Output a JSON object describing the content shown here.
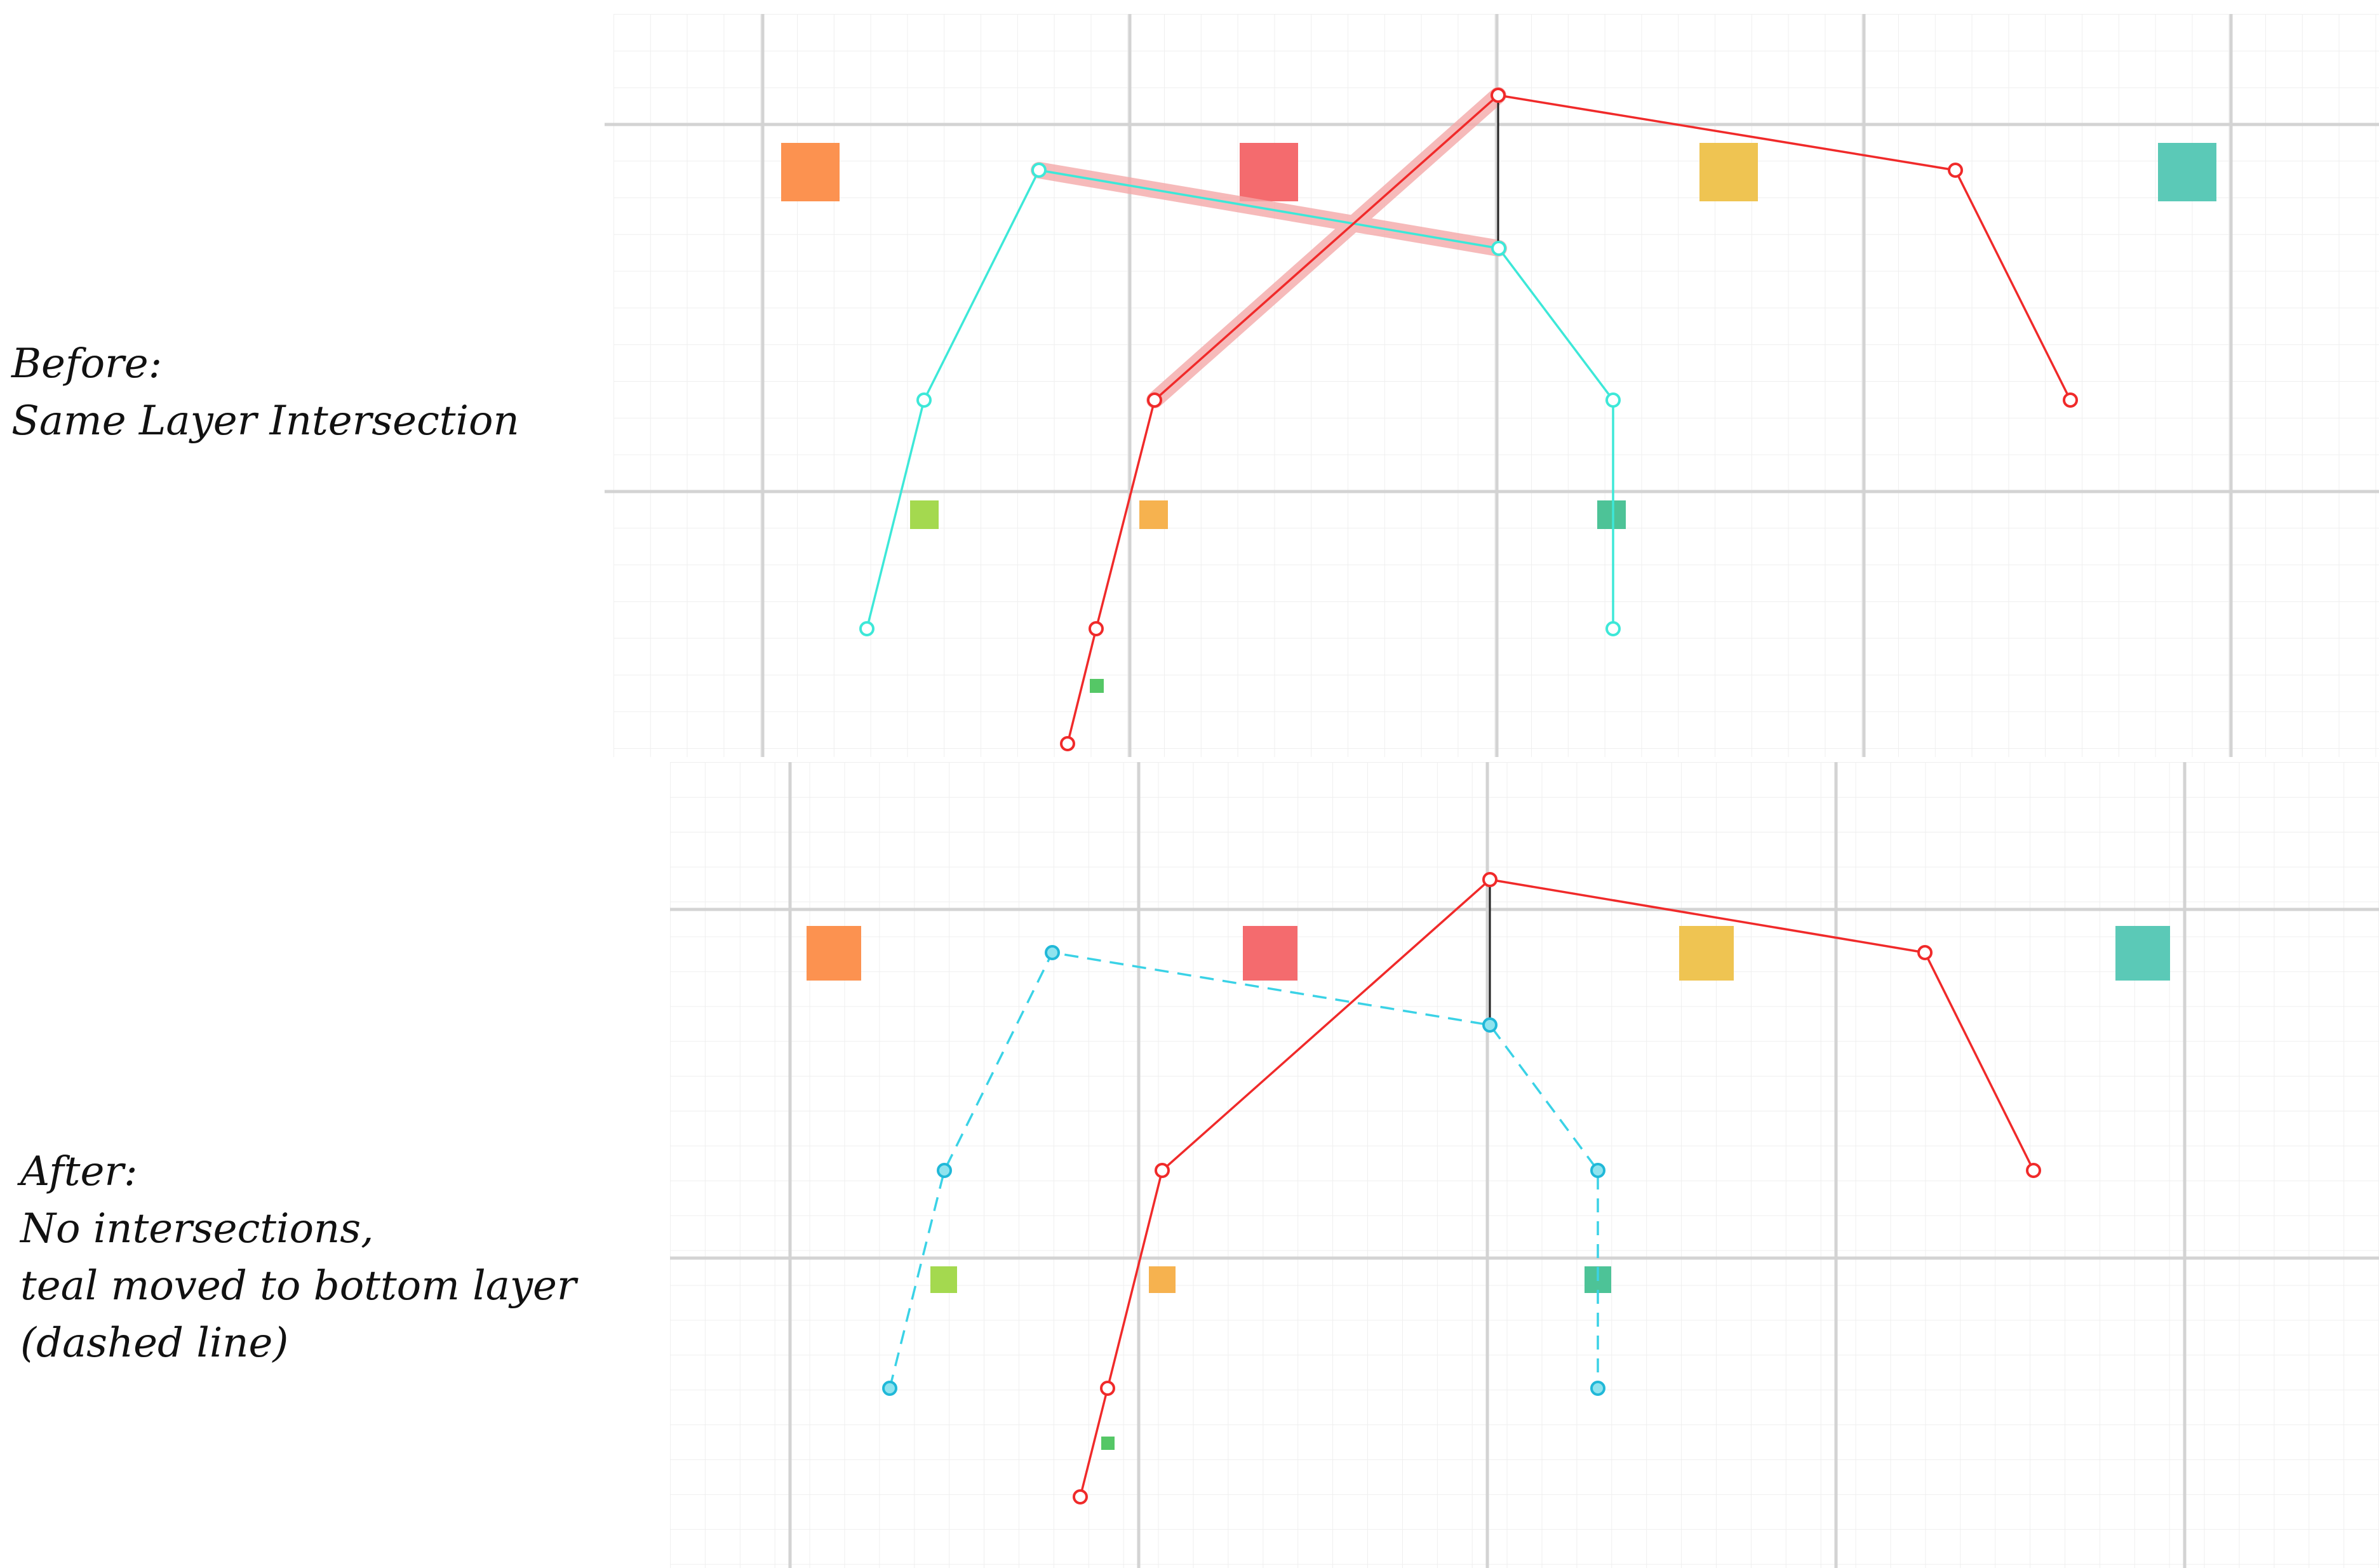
{
  "captions": {
    "before": {
      "line1": "Before:",
      "line2": "Same Layer Intersection"
    },
    "after": {
      "line1": "After:",
      "line2": "No intersections,",
      "line3": "teal moved to bottom layer",
      "line4": "(dashed line)"
    }
  },
  "colors": {
    "red_wire": "#f02a2a",
    "teal_wire": "#3de8d8",
    "teal_dashed": "#3ad2e6",
    "highlight": "#f4a9a9",
    "grid_major": "#cfcfcf",
    "grid_minor": "#ececec",
    "square_orange": "#fc9250",
    "square_red": "#f46b6e",
    "square_yellow": "#efc452",
    "square_teal": "#5bc9b7",
    "square_green": "#a4d94f",
    "square_amber": "#f6b24f",
    "square_darkteal": "#4dc397",
    "square_small_green": "#55c766"
  },
  "diagram": {
    "before": {
      "teal_layer": "same layer",
      "intersection": "red and teal wires cross on the same layer"
    },
    "after": {
      "teal_layer": "bottom layer (dashed)",
      "intersection": "none"
    }
  }
}
